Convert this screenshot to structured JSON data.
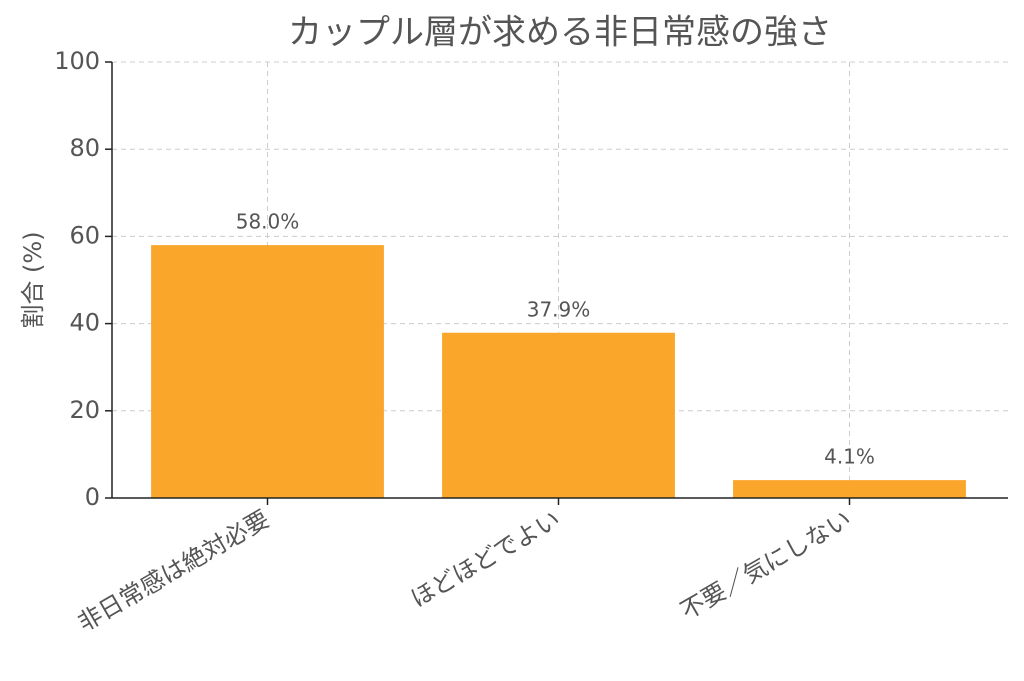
{
  "chart_data": {
    "type": "bar",
    "title": "カップル層が求める非日常感の強さ",
    "ylabel": "割合 (%)",
    "categories": [
      "非日常感は絶対必要",
      "ほどほどでよい",
      "不要／気にしない"
    ],
    "values": [
      58.0,
      37.9,
      4.1
    ],
    "value_labels": [
      "58.0%",
      "37.9%",
      "4.1%"
    ],
    "color": "#faa62a",
    "ylim": [
      0,
      100
    ],
    "yticks": [
      0,
      20,
      40,
      60,
      80,
      100
    ],
    "grid": true
  }
}
